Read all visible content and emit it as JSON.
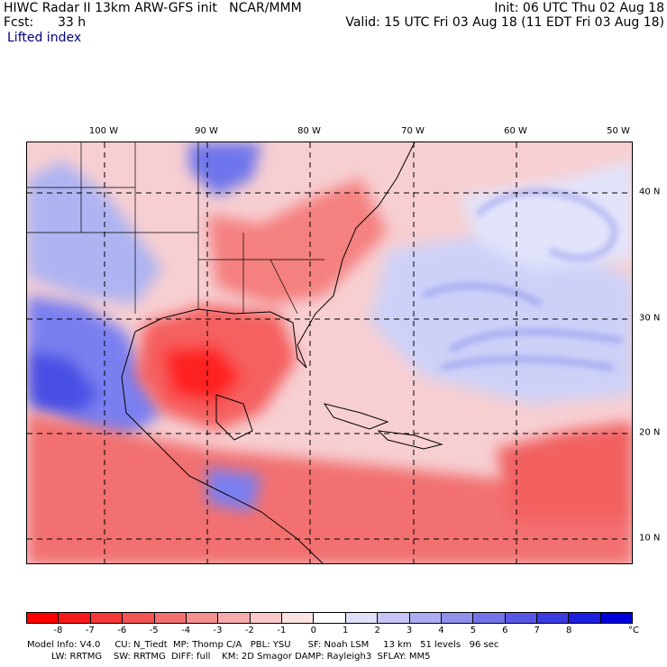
{
  "header": {
    "title_left": "HIWC Radar II 13km ARW-GFS init   NCAR/MMM",
    "fcst_label": "Fcst:",
    "fcst_value": "33 h",
    "init": "Init: 06 UTC Thu 02 Aug 18",
    "valid": "Valid: 15 UTC Fri 03 Aug 18 (11 EDT Fri 03 Aug 18)",
    "field_name": "Lifted index"
  },
  "map": {
    "lon_labels": [
      "100 W",
      "90 W",
      "80 W",
      "70 W",
      "60 W",
      "50 W"
    ],
    "lat_labels": [
      "40 N",
      "30 N",
      "20 N",
      "10 N"
    ]
  },
  "colorbar": {
    "colors": [
      "#ff0000",
      "#f81a1a",
      "#f53838",
      "#f45555",
      "#f47070",
      "#f68f8f",
      "#f8abab",
      "#fbc8c8",
      "#fde3e3",
      "#ffffff",
      "#e0e0fb",
      "#c6c6f6",
      "#acacf2",
      "#9090ee",
      "#7373ea",
      "#5757e6",
      "#3b3be2",
      "#1f1fde",
      "#0000da"
    ],
    "ticks": [
      "-8",
      "-7",
      "-6",
      "-5",
      "-4",
      "-3",
      "-2",
      "-1",
      "0",
      "1",
      "2",
      "3",
      "4",
      "5",
      "6",
      "7",
      "8"
    ],
    "unit": "°C"
  },
  "footer": {
    "line1": "Model Info: V4.0     CU: N_Tiedt  MP: Thomp C/A   PBL: YSU      SF: Noah LSM     13 km   51 levels   96 sec",
    "line2": "LW: RRTMG    SW: RRTMG  DIFF: full    KM: 2D Smagor DAMP: Rayleigh3  SFLAY: MM5"
  }
}
